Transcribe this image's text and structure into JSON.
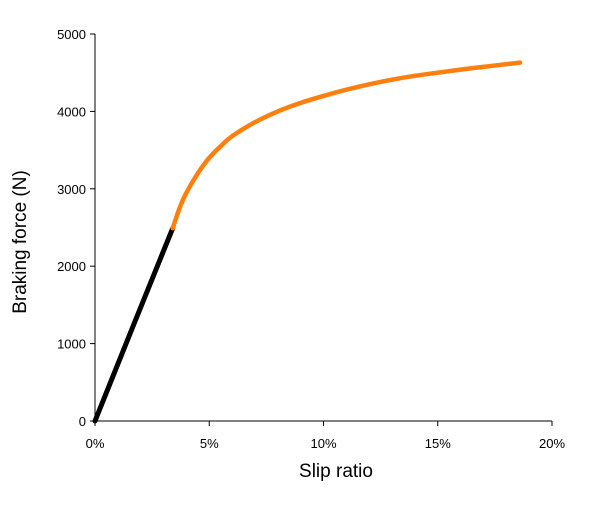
{
  "chart_data": {
    "type": "line",
    "title": "",
    "xlabel": "Slip ratio",
    "ylabel": "Braking force (N)",
    "xlim": [
      0,
      20
    ],
    "ylim": [
      0,
      5000
    ],
    "x_ticks": [
      0,
      5,
      10,
      15,
      20
    ],
    "x_tick_labels": [
      "0%",
      "5%",
      "10%",
      "15%",
      "20%"
    ],
    "y_ticks": [
      0,
      1000,
      2000,
      3000,
      4000,
      5000
    ],
    "y_tick_labels": [
      "0",
      "1000",
      "2000",
      "3000",
      "4000",
      "5000"
    ],
    "grid": false,
    "legend": "none",
    "series": [
      {
        "color": "#000000",
        "x": [
          0,
          1.7,
          3.4
        ],
        "y": [
          0,
          1250,
          2490
        ]
      },
      {
        "color": "#ff7f0e",
        "x": [
          3.4,
          3.7,
          4.0,
          4.5,
          5.0,
          5.5,
          6.0,
          7.0,
          8.0,
          9.0,
          10.0,
          11.0,
          12.0,
          13.0,
          14.0,
          15.0,
          16.0,
          17.0,
          18.0,
          18.6
        ],
        "y": [
          2490,
          2750,
          2950,
          3200,
          3400,
          3550,
          3680,
          3860,
          4000,
          4110,
          4200,
          4280,
          4350,
          4410,
          4460,
          4500,
          4540,
          4575,
          4610,
          4630
        ]
      }
    ]
  }
}
